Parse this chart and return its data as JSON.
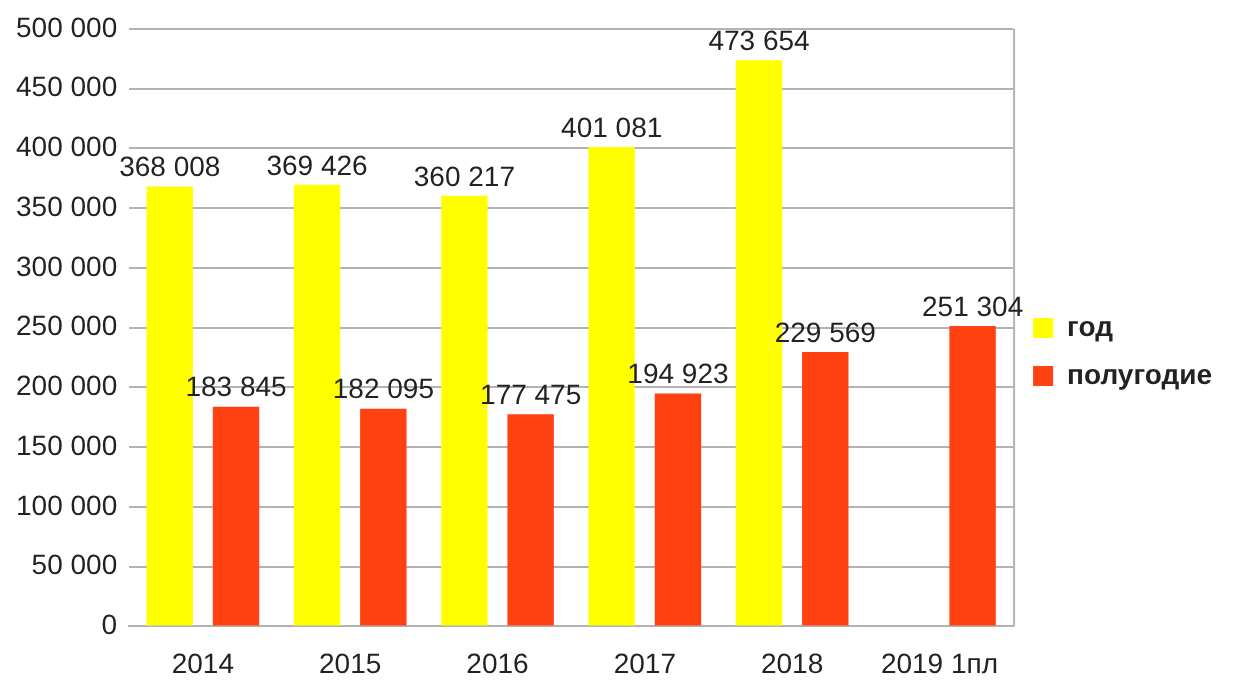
{
  "chart_data": {
    "type": "bar",
    "categories": [
      "2014",
      "2015",
      "2016",
      "2017",
      "2018",
      "2019 1пл"
    ],
    "series": [
      {
        "name": "год",
        "color": "#ffff00",
        "values": [
          368008,
          369426,
          360217,
          401081,
          473654,
          null
        ],
        "value_labels": [
          "368 008",
          "369 426",
          "360 217",
          "401 081",
          "473 654",
          null
        ]
      },
      {
        "name": "полугодие",
        "color": "#ff4010",
        "values": [
          183845,
          182095,
          177475,
          194923,
          229569,
          251304
        ],
        "value_labels": [
          "183 845",
          "182 095",
          "177 475",
          "194 923",
          "229 569",
          "251 304"
        ]
      }
    ],
    "ylim": [
      0,
      500000
    ],
    "yticks": [
      {
        "value": 0,
        "label": "0"
      },
      {
        "value": 50000,
        "label": "50 000"
      },
      {
        "value": 100000,
        "label": "100 000"
      },
      {
        "value": 150000,
        "label": "150 000"
      },
      {
        "value": 200000,
        "label": "200 000"
      },
      {
        "value": 250000,
        "label": "250 000"
      },
      {
        "value": 300000,
        "label": "300 000"
      },
      {
        "value": 350000,
        "label": "350 000"
      },
      {
        "value": 400000,
        "label": "400 000"
      },
      {
        "value": 450000,
        "label": "450 000"
      },
      {
        "value": 500000,
        "label": "500 000"
      }
    ],
    "grid": "y",
    "legend": "right"
  }
}
